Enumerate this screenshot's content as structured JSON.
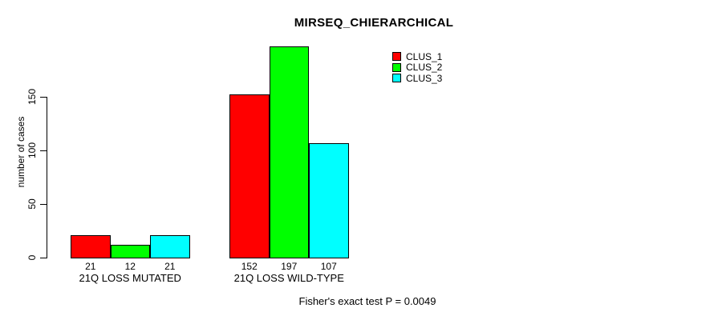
{
  "chart_data": {
    "type": "bar",
    "title": "MIRSEQ_CHIERARCHICAL",
    "ylabel": "number of cases",
    "xlabel": "",
    "categories": [
      "21Q LOSS MUTATED",
      "21Q LOSS WILD-TYPE"
    ],
    "series": [
      {
        "name": "CLUS_1",
        "color": "#ff0000",
        "values": [
          21,
          152
        ]
      },
      {
        "name": "CLUS_2",
        "color": "#00ff00",
        "values": [
          12,
          197
        ]
      },
      {
        "name": "CLUS_3",
        "color": "#00ffff",
        "values": [
          21,
          107
        ]
      }
    ],
    "bar_value_labels": [
      [
        "21",
        "12",
        "21"
      ],
      [
        "152",
        "197",
        "107"
      ]
    ],
    "yticks": [
      "0",
      "50",
      "100",
      "150"
    ],
    "ytick_values": [
      0,
      50,
      100,
      150
    ],
    "ylim": [
      0,
      200
    ],
    "grid": false,
    "legend_position": "top-right",
    "annotation": "Fisher's exact test P = 0.0049"
  },
  "colors": {
    "background": "#ffffff",
    "axis": "#000000",
    "text": "#000000"
  }
}
